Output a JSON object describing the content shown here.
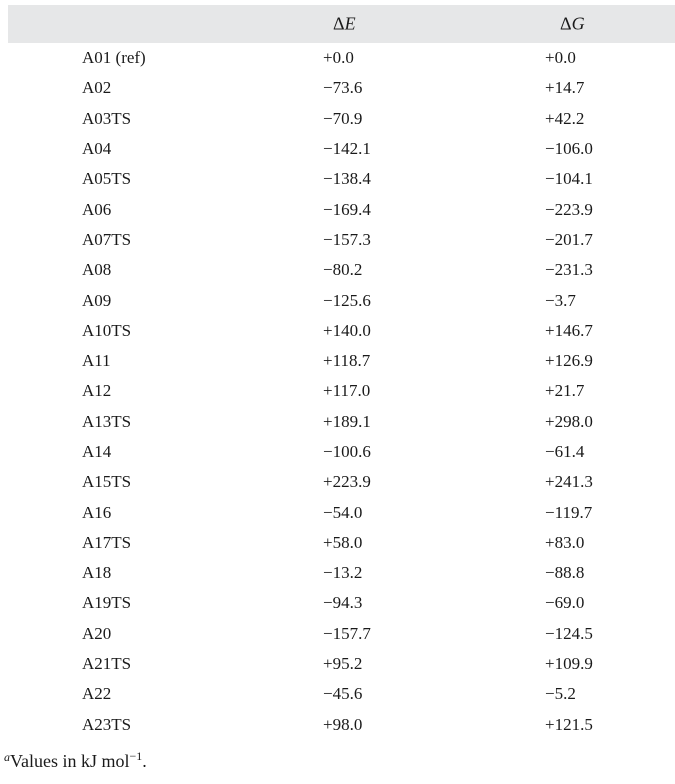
{
  "table": {
    "columns": {
      "name": "",
      "delta_e": "ΔE",
      "delta_g": "ΔG"
    },
    "header_symbols": {
      "delta": "Δ",
      "e": "E",
      "g": "G"
    },
    "rows": [
      {
        "name": "A01 (ref)",
        "delta_e": "+0.0",
        "delta_g": "+0.0"
      },
      {
        "name": "A02",
        "delta_e": "−73.6",
        "delta_g": "+14.7"
      },
      {
        "name": "A03TS",
        "delta_e": "−70.9",
        "delta_g": "+42.2"
      },
      {
        "name": "A04",
        "delta_e": "−142.1",
        "delta_g": "−106.0"
      },
      {
        "name": "A05TS",
        "delta_e": "−138.4",
        "delta_g": "−104.1"
      },
      {
        "name": "A06",
        "delta_e": "−169.4",
        "delta_g": "−223.9"
      },
      {
        "name": "A07TS",
        "delta_e": "−157.3",
        "delta_g": "−201.7"
      },
      {
        "name": "A08",
        "delta_e": "−80.2",
        "delta_g": "−231.3"
      },
      {
        "name": "A09",
        "delta_e": "−125.6",
        "delta_g": "−3.7"
      },
      {
        "name": "A10TS",
        "delta_e": "+140.0",
        "delta_g": "+146.7"
      },
      {
        "name": "A11",
        "delta_e": "+118.7",
        "delta_g": "+126.9"
      },
      {
        "name": "A12",
        "delta_e": "+117.0",
        "delta_g": "+21.7"
      },
      {
        "name": "A13TS",
        "delta_e": "+189.1",
        "delta_g": "+298.0"
      },
      {
        "name": "A14",
        "delta_e": "−100.6",
        "delta_g": "−61.4"
      },
      {
        "name": "A15TS",
        "delta_e": "+223.9",
        "delta_g": "+241.3"
      },
      {
        "name": "A16",
        "delta_e": "−54.0",
        "delta_g": "−119.7"
      },
      {
        "name": "A17TS",
        "delta_e": "+58.0",
        "delta_g": "+83.0"
      },
      {
        "name": "A18",
        "delta_e": "−13.2",
        "delta_g": "−88.8"
      },
      {
        "name": "A19TS",
        "delta_e": "−94.3",
        "delta_g": "−69.0"
      },
      {
        "name": "A20",
        "delta_e": "−157.7",
        "delta_g": "−124.5"
      },
      {
        "name": "A21TS",
        "delta_e": "+95.2",
        "delta_g": "+109.9"
      },
      {
        "name": "A22",
        "delta_e": "−45.6",
        "delta_g": "−5.2"
      },
      {
        "name": "A23TS",
        "delta_e": "+98.0",
        "delta_g": "+121.5"
      }
    ]
  },
  "footnote": {
    "marker": "a",
    "text": "Values in kJ mol",
    "exponent": "−1",
    "end": "."
  },
  "colors": {
    "header_background": "#e6e7e8",
    "text": "#1a1a1a"
  }
}
